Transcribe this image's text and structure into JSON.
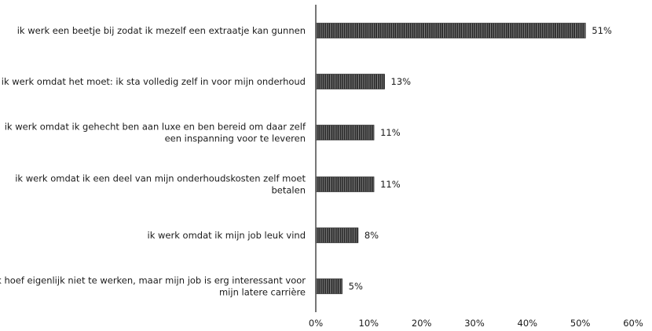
{
  "chart_data": {
    "type": "bar",
    "orientation": "horizontal",
    "categories": [
      [
        "ik werk een beetje bij zodat ik mezelf een extraatje kan gunnen"
      ],
      [
        "ik werk omdat het moet: ik sta volledig zelf in voor mijn onderhoud"
      ],
      [
        "ik werk omdat ik gehecht ben aan luxe en ben bereid om daar zelf",
        "een inspanning voor te leveren"
      ],
      [
        "ik werk omdat ik een deel van mijn onderhoudskosten zelf moet",
        "betalen"
      ],
      [
        "ik werk omdat ik mijn job leuk vind"
      ],
      [
        "ik hoef eigenlijk niet te werken, maar mijn job is erg interessant voor",
        "mijn latere carrière"
      ]
    ],
    "values": [
      51,
      13,
      11,
      11,
      8,
      5
    ],
    "value_labels": [
      "51%",
      "13%",
      "11%",
      "11%",
      "8%",
      "5%"
    ],
    "xlim": [
      0,
      60
    ],
    "xticks": [
      0,
      10,
      20,
      30,
      40,
      50,
      60
    ],
    "xtick_labels": [
      "0%",
      "10%",
      "20%",
      "30%",
      "40%",
      "50%",
      "60%"
    ],
    "title": "",
    "xlabel": "",
    "ylabel": "",
    "grid": false,
    "legend": "none",
    "bar_color": "#1a1a1a",
    "bar_stripe_color": "#9a9a9a",
    "axis_color": "#555555"
  }
}
